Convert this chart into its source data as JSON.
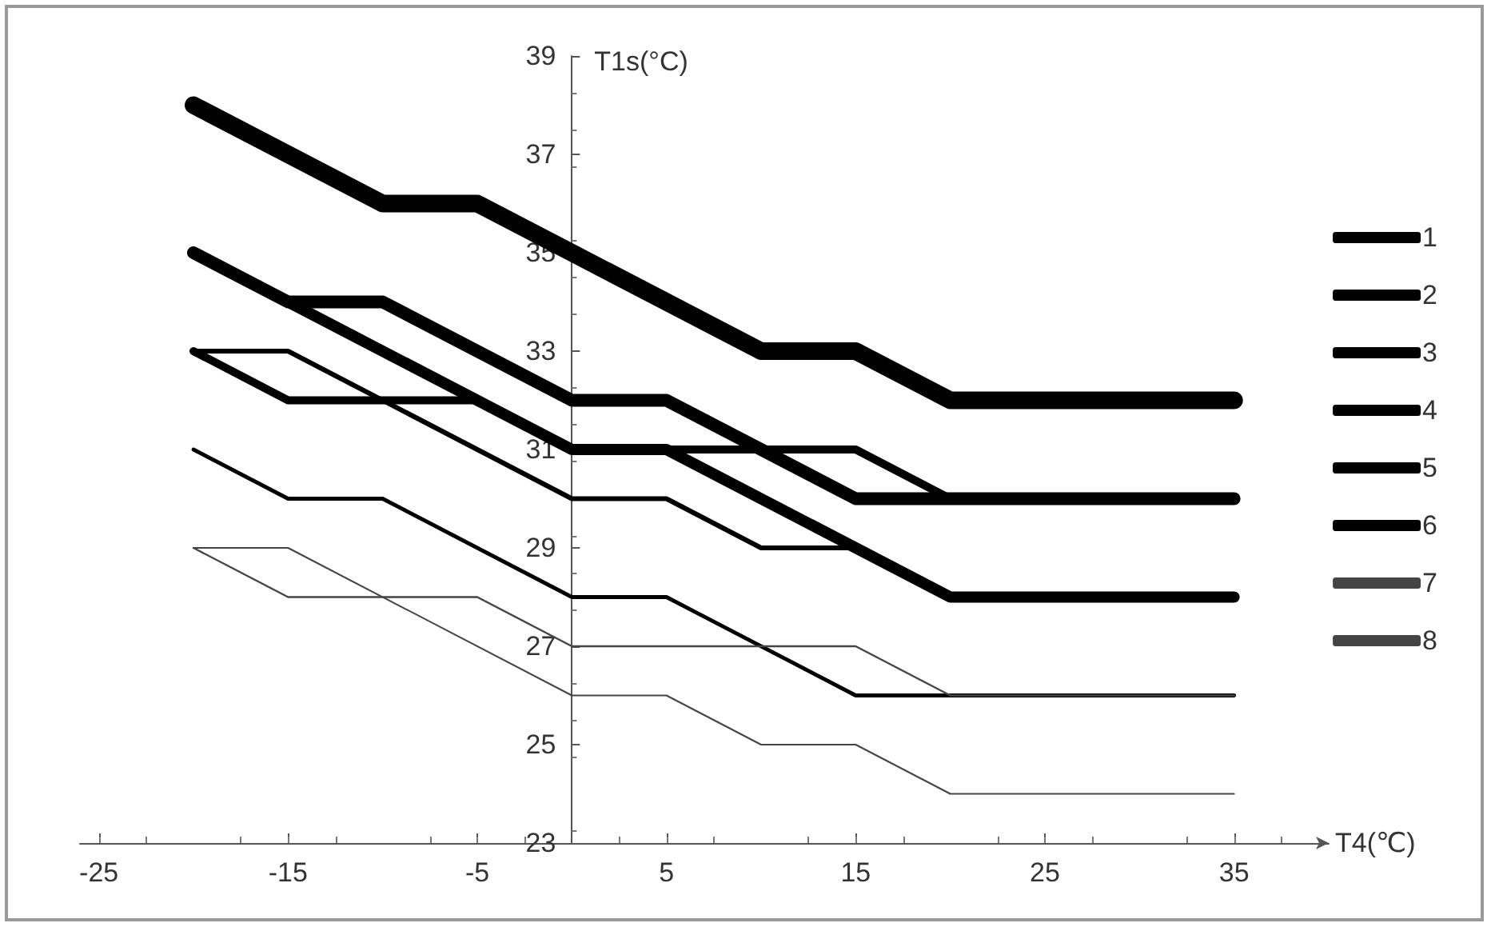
{
  "chart_data": {
    "type": "line",
    "xlabel": "T4(℃)",
    "ylabel": "T1s(°C)",
    "xlim": [
      -26,
      40
    ],
    "xticks": [
      -25,
      -15,
      -5,
      5,
      15,
      25,
      35
    ],
    "ylim": [
      23,
      39
    ],
    "yticks": [
      23,
      25,
      27,
      29,
      31,
      33,
      35,
      37,
      39
    ],
    "grid": false,
    "legend": "right",
    "marker": "none",
    "line_style": "solid",
    "series": [
      {
        "name": "1",
        "color": "#000000",
        "x": [
          -20,
          -10,
          -5,
          0,
          10,
          15,
          20,
          35
        ],
        "values": [
          38,
          36,
          36,
          35,
          33,
          33,
          32,
          32
        ]
      },
      {
        "name": "2",
        "color": "#000000",
        "x": [
          -20,
          -15,
          -10,
          0,
          5,
          15,
          35
        ],
        "values": [
          35,
          34,
          34,
          32,
          32,
          30,
          30
        ]
      },
      {
        "name": "3",
        "color": "#000000",
        "x": [
          -20,
          0,
          5,
          20,
          35
        ],
        "values": [
          35,
          31,
          31,
          28,
          28
        ]
      },
      {
        "name": "4",
        "color": "#000000",
        "x": [
          -20,
          -15,
          -5,
          0,
          15,
          20,
          35
        ],
        "values": [
          33,
          32,
          32,
          31,
          31,
          30,
          30
        ]
      },
      {
        "name": "5",
        "color": "#000000",
        "x": [
          -20,
          -15,
          0,
          5,
          10,
          15,
          20,
          35
        ],
        "values": [
          33,
          33,
          30,
          30,
          29,
          29,
          28,
          28
        ]
      },
      {
        "name": "6",
        "color": "#000000",
        "x": [
          -20,
          -15,
          -10,
          0,
          5,
          15,
          35
        ],
        "values": [
          31,
          30,
          30,
          28,
          28,
          26,
          26
        ]
      },
      {
        "name": "7",
        "color": "#444444",
        "x": [
          -20,
          -15,
          -5,
          0,
          15,
          20,
          35
        ],
        "values": [
          29,
          28,
          28,
          27,
          27,
          26,
          26
        ]
      },
      {
        "name": "8",
        "color": "#444444",
        "x": [
          -20,
          -15,
          0,
          5,
          10,
          15,
          20,
          35
        ],
        "values": [
          29,
          29,
          26,
          26,
          25,
          25,
          24,
          24
        ]
      }
    ]
  }
}
